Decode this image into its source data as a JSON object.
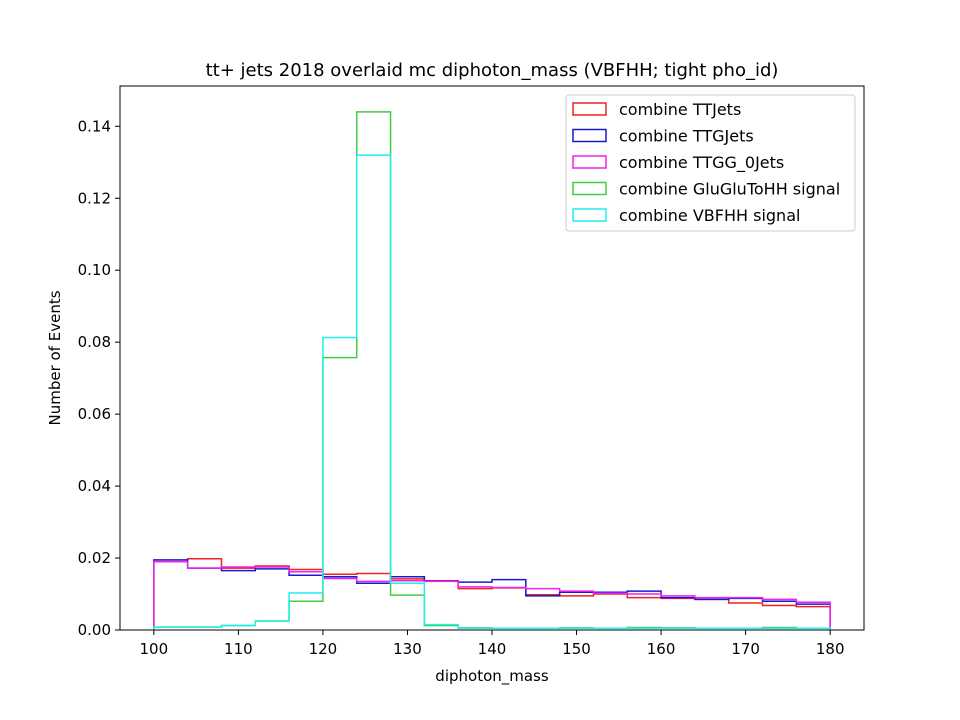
{
  "chart_data": {
    "type": "histogram",
    "title": "tt+ jets 2018 overlaid mc diphoton_mass (VBFHH; tight pho_id)",
    "xlabel": "diphoton_mass",
    "ylabel": "Number of Events",
    "xlim": [
      96,
      184
    ],
    "ylim": [
      0,
      0.1512
    ],
    "xticks": [
      100,
      110,
      120,
      130,
      140,
      150,
      160,
      170,
      180
    ],
    "xtick_labels": [
      "100",
      "110",
      "120",
      "130",
      "140",
      "150",
      "160",
      "170",
      "180"
    ],
    "yticks": [
      0,
      0.02,
      0.04,
      0.06,
      0.08,
      0.1,
      0.12,
      0.14
    ],
    "ytick_labels": [
      "0.00",
      "0.02",
      "0.04",
      "0.06",
      "0.08",
      "0.10",
      "0.12",
      "0.14"
    ],
    "bin_edges": [
      100,
      104,
      108,
      112,
      116,
      120,
      124,
      128,
      132,
      136,
      140,
      144,
      148,
      152,
      156,
      160,
      164,
      168,
      172,
      176,
      180
    ],
    "legend_position": "top-right",
    "series": [
      {
        "name": "combine TTJets",
        "color": "#ee2222",
        "values": [
          0.019,
          0.0198,
          0.0172,
          0.0178,
          0.0168,
          0.0155,
          0.0157,
          0.0142,
          0.0137,
          0.0115,
          0.0117,
          0.0098,
          0.0095,
          0.01,
          0.009,
          0.0088,
          0.0085,
          0.0075,
          0.0068,
          0.0065
        ]
      },
      {
        "name": "combine TTGJets",
        "color": "#1a1acc",
        "values": [
          0.0195,
          0.0172,
          0.0165,
          0.017,
          0.0152,
          0.0148,
          0.013,
          0.0148,
          0.0136,
          0.0133,
          0.014,
          0.0095,
          0.0105,
          0.0105,
          0.0108,
          0.009,
          0.0085,
          0.0088,
          0.008,
          0.0072
        ]
      },
      {
        "name": "combine TTGG_0Jets",
        "color": "#ee22ee",
        "values": [
          0.019,
          0.0172,
          0.0175,
          0.0175,
          0.0162,
          0.0143,
          0.0135,
          0.0137,
          0.0135,
          0.012,
          0.0118,
          0.0115,
          0.0108,
          0.0102,
          0.01,
          0.0095,
          0.009,
          0.009,
          0.0085,
          0.0077
        ]
      },
      {
        "name": "combine GluGluToHH signal",
        "color": "#44cc44",
        "values": [
          0.0008,
          0.0008,
          0.0012,
          0.0025,
          0.008,
          0.0757,
          0.144,
          0.0097,
          0.0012,
          0.0006,
          0.0005,
          0.0005,
          0.0006,
          0.0005,
          0.0007,
          0.0006,
          0.0005,
          0.0005,
          0.0007,
          0.0005
        ]
      },
      {
        "name": "combine VBFHH signal",
        "color": "#22eeee",
        "values": [
          0.0008,
          0.0008,
          0.0013,
          0.0025,
          0.0103,
          0.0813,
          0.132,
          0.013,
          0.0015,
          0.0005,
          0.0005,
          0.0005,
          0.0005,
          0.0005,
          0.0005,
          0.0005,
          0.0005,
          0.0005,
          0.0005,
          0.0005
        ]
      }
    ]
  }
}
